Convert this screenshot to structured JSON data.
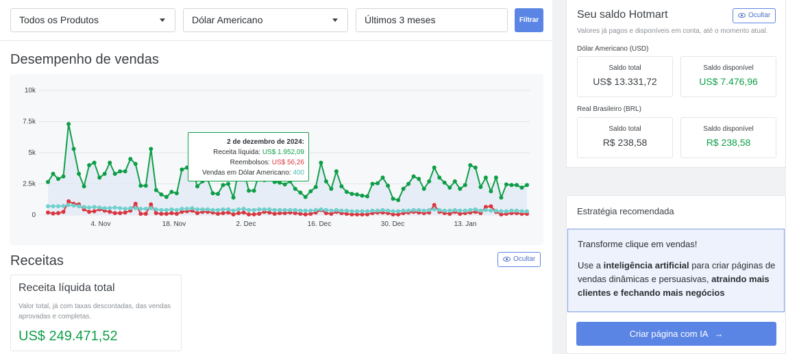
{
  "filters": {
    "product": "Todos os Produtos",
    "currency": "Dólar Americano",
    "period": "Últimos 3 meses",
    "filter_label": "Filtrar"
  },
  "sales": {
    "title": "Desempenho de vendas",
    "tooltip": {
      "date": "2 de dezembro de 2024:",
      "net_label": "Receita líquida:",
      "net_value": "US$ 1.952,09",
      "refund_label": "Reembolsos:",
      "refund_value": "US$ 56,26",
      "count_label": "Vendas em Dólar Americano:",
      "count_value": "400"
    }
  },
  "chart_data": {
    "type": "line",
    "y_ticks": [
      "10k",
      "7.5k",
      "5k",
      "2.5k",
      "0"
    ],
    "x_ticks": [
      "4. Nov",
      "18. Nov",
      "2. Dec",
      "16. Dec",
      "30. Dec",
      "13. Jan"
    ],
    "ylim": [
      0,
      10000
    ],
    "grid": true,
    "legend": "none",
    "series": [
      {
        "color": "#0e9e47",
        "values": [
          2650,
          3300,
          2900,
          3100,
          7300,
          5300,
          3300,
          2300,
          4000,
          4200,
          3000,
          3300,
          4200,
          3300,
          3500,
          3500,
          4500,
          4100,
          2350,
          2350,
          5300,
          2000,
          1650,
          1450,
          1850,
          1750,
          3650,
          3800,
          3700,
          2300,
          2700,
          2850,
          1750,
          1700,
          2400,
          2500,
          1400,
          3600,
          3600,
          1950,
          1952,
          3300,
          2800,
          3200,
          2650,
          2600,
          2450,
          2700,
          2100,
          1800,
          1450,
          1900,
          2250,
          4200,
          2700,
          2100,
          3500,
          2300,
          1850,
          1700,
          1650,
          1550,
          1500,
          2500,
          2550,
          3000,
          2350,
          1300,
          1200,
          2100,
          2500,
          3100,
          2900,
          2100,
          2700,
          3800,
          3000,
          2600,
          2200,
          2700,
          2100,
          2400,
          4000,
          3800,
          2250,
          3000,
          1900,
          3000,
          1400,
          2450,
          2400,
          2400,
          2200,
          2400
        ]
      },
      {
        "color": "#d9363e",
        "values": [
          200,
          120,
          150,
          250,
          1100,
          900,
          850,
          450,
          250,
          300,
          450,
          350,
          250,
          150,
          150,
          200,
          350,
          900,
          100,
          100,
          850,
          150,
          100,
          100,
          150,
          100,
          250,
          300,
          350,
          150,
          250,
          250,
          200,
          100,
          150,
          200,
          50,
          150,
          200,
          50,
          56,
          100,
          250,
          200,
          100,
          150,
          150,
          200,
          150,
          100,
          50,
          100,
          200,
          400,
          150,
          100,
          250,
          150,
          100,
          50,
          50,
          50,
          50,
          150,
          200,
          200,
          150,
          50,
          50,
          150,
          200,
          250,
          200,
          150,
          200,
          800,
          250,
          150,
          100,
          250,
          100,
          150,
          200,
          250,
          150,
          650,
          700,
          250,
          50,
          100,
          150,
          150,
          100,
          100
        ]
      },
      {
        "color": "#6fd0cc",
        "values": [
          700,
          700,
          700,
          720,
          800,
          750,
          700,
          650,
          600,
          650,
          600,
          550,
          550,
          600,
          550,
          500,
          550,
          550,
          500,
          500,
          550,
          450,
          400,
          400,
          450,
          400,
          500,
          500,
          550,
          450,
          450,
          450,
          400,
          400,
          450,
          450,
          350,
          450,
          500,
          400,
          400,
          450,
          450,
          450,
          400,
          400,
          400,
          400,
          400,
          350,
          350,
          350,
          400,
          450,
          400,
          350,
          400,
          350,
          350,
          300,
          300,
          300,
          300,
          350,
          350,
          400,
          350,
          300,
          300,
          350,
          350,
          400,
          400,
          350,
          400,
          450,
          400,
          350,
          350,
          400,
          350,
          350,
          400,
          450,
          350,
          400,
          350,
          350,
          300,
          300,
          350,
          350,
          300,
          300
        ]
      }
    ]
  },
  "receitas": {
    "title": "Receitas",
    "hide_label": "Ocultar",
    "card": {
      "title": "Receita líquida total",
      "description": "Valor total, já com taxas descontadas, das vendas aprovadas e completas.",
      "value": "US$ 249.471,52"
    }
  },
  "saldo": {
    "title": "Seu saldo Hotmart",
    "hide_label": "Ocultar",
    "subtitle": "Valores já pagos e disponíveis em conta, até o momento atual.",
    "usd": {
      "label": "Dólar Americano (USD)",
      "total_label": "Saldo total",
      "total_value": "US$ 13.331,72",
      "available_label": "Saldo disponível",
      "available_value": "US$ 7.476,96"
    },
    "brl": {
      "label": "Real Brasileiro (BRL)",
      "total_label": "Saldo total",
      "total_value": "R$ 238,58",
      "available_label": "Saldo disponível",
      "available_value": "R$ 238,58"
    }
  },
  "strategy": {
    "title": "Estratégia recomendada",
    "headline": "Transforme clique em vendas!",
    "text_1": "Use a ",
    "text_bold_1": "inteligência artificial",
    "text_2": " para criar páginas de vendas dinâmicas e persuasivas, ",
    "text_bold_2": "atraindo mais clientes e fechando mais negócios",
    "cta_label": "Criar página com IA",
    "cta_arrow": "→"
  },
  "colors": {
    "primary": "#5b85e4",
    "green": "#0e9e47",
    "red": "#d9363e",
    "teal": "#4fbbb8"
  },
  "icons": {
    "caret": "chevron-down-icon",
    "eye": "eye-icon",
    "arrow": "arrow-right-icon"
  }
}
